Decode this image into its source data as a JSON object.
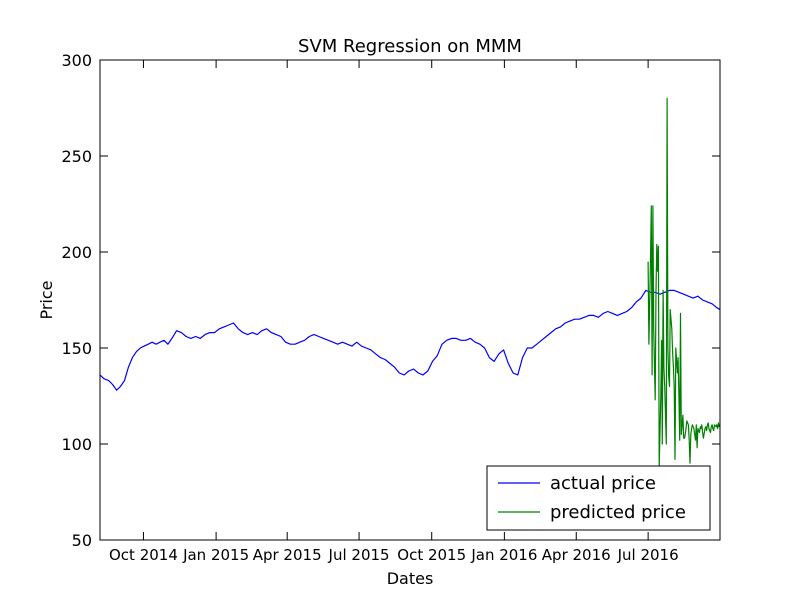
{
  "chart_data": {
    "type": "line",
    "title": "SVM Regression on MMM",
    "xlabel": "Dates",
    "ylabel": "Price",
    "xlim": [
      "2014-08-07",
      "2016-09-30"
    ],
    "ylim": [
      50,
      300
    ],
    "yticks": [
      50,
      100,
      150,
      200,
      250,
      300
    ],
    "xticks": [
      {
        "date": "2014-10-01",
        "label": "Oct 2014"
      },
      {
        "date": "2015-01-01",
        "label": "Jan 2015"
      },
      {
        "date": "2015-04-01",
        "label": "Apr 2015"
      },
      {
        "date": "2015-07-01",
        "label": "Jul 2015"
      },
      {
        "date": "2015-10-01",
        "label": "Oct 2015"
      },
      {
        "date": "2016-01-01",
        "label": "Jan 2016"
      },
      {
        "date": "2016-04-01",
        "label": "Apr 2016"
      },
      {
        "date": "2016-07-01",
        "label": "Jul 2016"
      }
    ],
    "grid": false,
    "legend_position": "lower-right",
    "series": [
      {
        "name": "actual price",
        "color": "#0000ff",
        "x": [
          "2014-08-07",
          "2014-08-12",
          "2014-08-18",
          "2014-08-23",
          "2014-08-28",
          "2014-09-02",
          "2014-09-07",
          "2014-09-12",
          "2014-09-17",
          "2014-09-22",
          "2014-09-27",
          "2014-10-02",
          "2014-10-07",
          "2014-10-12",
          "2014-10-17",
          "2014-10-22",
          "2014-10-27",
          "2014-11-01",
          "2014-11-06",
          "2014-11-12",
          "2014-11-18",
          "2014-11-24",
          "2014-11-30",
          "2014-12-06",
          "2014-12-12",
          "2014-12-18",
          "2014-12-24",
          "2014-12-30",
          "2015-01-05",
          "2015-01-11",
          "2015-01-17",
          "2015-01-23",
          "2015-01-29",
          "2015-02-04",
          "2015-02-10",
          "2015-02-16",
          "2015-02-22",
          "2015-02-28",
          "2015-03-06",
          "2015-03-12",
          "2015-03-18",
          "2015-03-24",
          "2015-03-30",
          "2015-04-05",
          "2015-04-11",
          "2015-04-17",
          "2015-04-23",
          "2015-04-29",
          "2015-05-05",
          "2015-05-11",
          "2015-05-17",
          "2015-05-23",
          "2015-05-29",
          "2015-06-04",
          "2015-06-10",
          "2015-06-16",
          "2015-06-22",
          "2015-06-28",
          "2015-07-04",
          "2015-07-10",
          "2015-07-16",
          "2015-07-22",
          "2015-07-28",
          "2015-08-03",
          "2015-08-09",
          "2015-08-15",
          "2015-08-21",
          "2015-08-27",
          "2015-09-02",
          "2015-09-08",
          "2015-09-14",
          "2015-09-20",
          "2015-09-26",
          "2015-10-02",
          "2015-10-08",
          "2015-10-14",
          "2015-10-20",
          "2015-10-26",
          "2015-11-01",
          "2015-11-07",
          "2015-11-13",
          "2015-11-19",
          "2015-11-25",
          "2015-12-01",
          "2015-12-07",
          "2015-12-13",
          "2015-12-19",
          "2015-12-25",
          "2015-12-31",
          "2016-01-06",
          "2016-01-12",
          "2016-01-18",
          "2016-01-24",
          "2016-01-30",
          "2016-02-05",
          "2016-02-11",
          "2016-02-17",
          "2016-02-23",
          "2016-02-29",
          "2016-03-06",
          "2016-03-12",
          "2016-03-18",
          "2016-03-24",
          "2016-03-30",
          "2016-04-05",
          "2016-04-11",
          "2016-04-17",
          "2016-04-23",
          "2016-04-29",
          "2016-05-05",
          "2016-05-11",
          "2016-05-17",
          "2016-05-23",
          "2016-05-29",
          "2016-06-04",
          "2016-06-10",
          "2016-06-16",
          "2016-06-22",
          "2016-06-28",
          "2016-07-04",
          "2016-07-10",
          "2016-07-16",
          "2016-07-22",
          "2016-07-28",
          "2016-08-03",
          "2016-08-09",
          "2016-08-15",
          "2016-08-21",
          "2016-08-27",
          "2016-09-02",
          "2016-09-08",
          "2016-09-14",
          "2016-09-20",
          "2016-09-26",
          "2016-09-30"
        ],
        "y": [
          136,
          134,
          133,
          131,
          128,
          130,
          133,
          140,
          145,
          148,
          150,
          151,
          152,
          153,
          152,
          153,
          154,
          152,
          155,
          159,
          158,
          156,
          155,
          156,
          155,
          157,
          158,
          158,
          160,
          161,
          162,
          163,
          160,
          158,
          157,
          158,
          157,
          159,
          160,
          158,
          157,
          156,
          153,
          152,
          152,
          153,
          154,
          156,
          157,
          156,
          155,
          154,
          153,
          152,
          153,
          152,
          151,
          153,
          151,
          150,
          149,
          147,
          145,
          144,
          142,
          140,
          137,
          136,
          138,
          139,
          137,
          136,
          138,
          143,
          146,
          152,
          154,
          155,
          155,
          154,
          154,
          155,
          153,
          152,
          150,
          145,
          143,
          147,
          149,
          142,
          137,
          136,
          145,
          150,
          150,
          152,
          154,
          156,
          158,
          160,
          161,
          163,
          164,
          165,
          165,
          166,
          167,
          167,
          166,
          168,
          169,
          168,
          167,
          168,
          169,
          171,
          174,
          176,
          180,
          179,
          179,
          178,
          179,
          180,
          180,
          179,
          178,
          177,
          176,
          177,
          175,
          174,
          173,
          171,
          170
        ]
      },
      {
        "name": "predicted price",
        "color": "#008000",
        "x": [
          "2016-07-01",
          "2016-07-02",
          "2016-07-04",
          "2016-07-05",
          "2016-07-06",
          "2016-07-07",
          "2016-07-08",
          "2016-07-10",
          "2016-07-11",
          "2016-07-12",
          "2016-07-13",
          "2016-07-14",
          "2016-07-15",
          "2016-07-17",
          "2016-07-18",
          "2016-07-19",
          "2016-07-20",
          "2016-07-21",
          "2016-07-22",
          "2016-07-24",
          "2016-07-25",
          "2016-07-26",
          "2016-07-27",
          "2016-07-28",
          "2016-07-29",
          "2016-07-31",
          "2016-08-01",
          "2016-08-02",
          "2016-08-03",
          "2016-08-04",
          "2016-08-05",
          "2016-08-07",
          "2016-08-08",
          "2016-08-09",
          "2016-08-10",
          "2016-08-11",
          "2016-08-12",
          "2016-08-14",
          "2016-08-15",
          "2016-08-16",
          "2016-08-17",
          "2016-08-18",
          "2016-08-19",
          "2016-08-21",
          "2016-08-22",
          "2016-08-23",
          "2016-08-24",
          "2016-08-25",
          "2016-08-26",
          "2016-08-28",
          "2016-08-29",
          "2016-08-30",
          "2016-08-31",
          "2016-09-01",
          "2016-09-02",
          "2016-09-04",
          "2016-09-05",
          "2016-09-06",
          "2016-09-07",
          "2016-09-08",
          "2016-09-09",
          "2016-09-11",
          "2016-09-12",
          "2016-09-13",
          "2016-09-14",
          "2016-09-15",
          "2016-09-16",
          "2016-09-18",
          "2016-09-19",
          "2016-09-20",
          "2016-09-21",
          "2016-09-22",
          "2016-09-23",
          "2016-09-25",
          "2016-09-26",
          "2016-09-27",
          "2016-09-28",
          "2016-09-29",
          "2016-09-30"
        ],
        "y": [
          195,
          152,
          196,
          224,
          136,
          224,
          160,
          123,
          180,
          204,
          190,
          203,
          88,
          125,
          154,
          100,
          180,
          140,
          130,
          100,
          280,
          150,
          135,
          130,
          170,
          160,
          148,
          140,
          130,
          92,
          150,
          137,
          145,
          125,
          102,
          168,
          105,
          115,
          103,
          103,
          105,
          108,
          112,
          110,
          102,
          90,
          105,
          108,
          110,
          108,
          105,
          102,
          110,
          98,
          108,
          106,
          109,
          108,
          110,
          106,
          103,
          108,
          109,
          107,
          110,
          111,
          108,
          106,
          109,
          110,
          108,
          107,
          110,
          109,
          110,
          108,
          111,
          109,
          110
        ]
      }
    ]
  }
}
